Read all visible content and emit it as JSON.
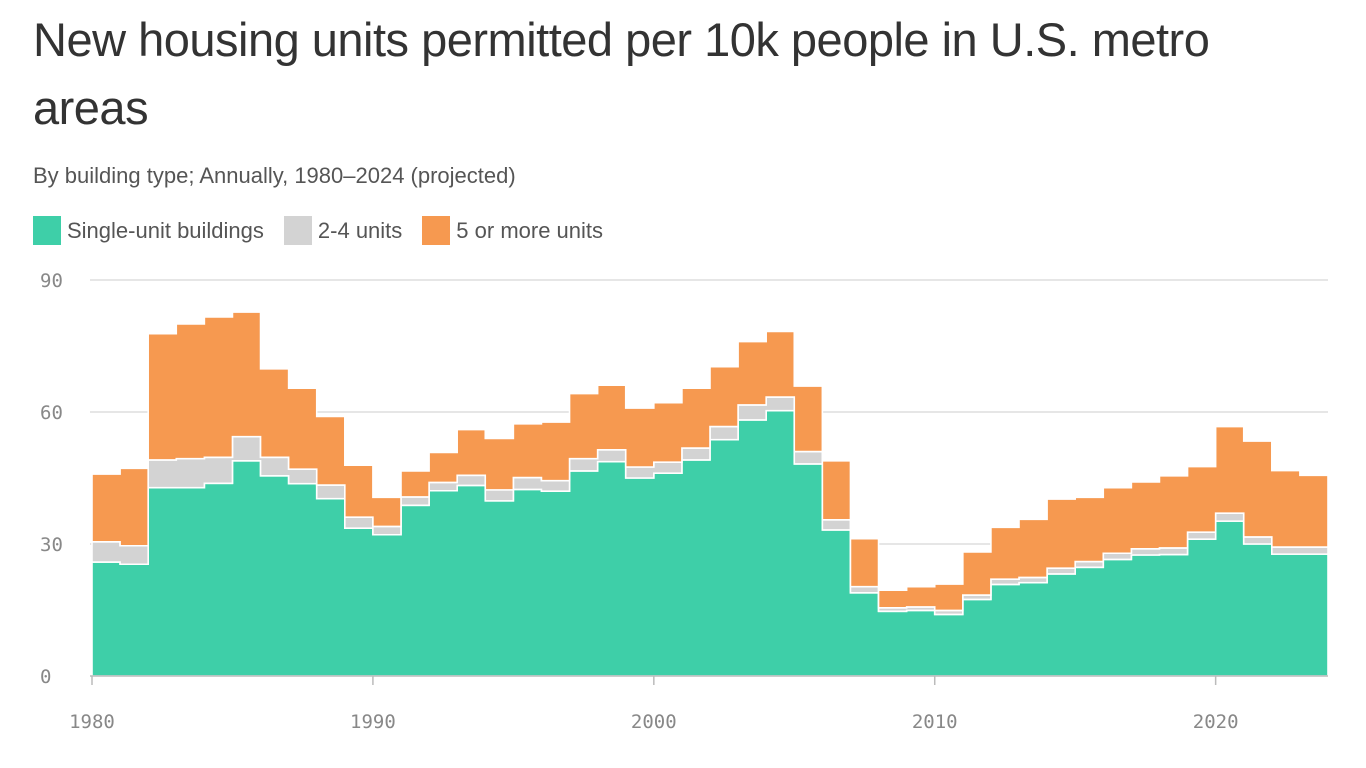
{
  "title": "New housing units permitted per 10k people in U.S. metro areas",
  "subtitle": "By building type; Annually, 1980–2024 (projected)",
  "legend": [
    {
      "label": "Single-unit buildings",
      "color": "#3ecfa8"
    },
    {
      "label": "2-4 units",
      "color": "#d3d3d3"
    },
    {
      "label": "5 or more units",
      "color": "#f69950"
    }
  ],
  "chart_data": {
    "type": "area",
    "stacked": true,
    "step": true,
    "x": [
      1980,
      1981,
      1982,
      1983,
      1984,
      1985,
      1986,
      1987,
      1988,
      1989,
      1990,
      1991,
      1992,
      1993,
      1994,
      1995,
      1996,
      1997,
      1998,
      1999,
      2000,
      2001,
      2002,
      2003,
      2004,
      2005,
      2006,
      2007,
      2008,
      2009,
      2010,
      2011,
      2012,
      2013,
      2014,
      2015,
      2016,
      2017,
      2018,
      2019,
      2020,
      2021,
      2022,
      2023
    ],
    "series": [
      {
        "name": "Single-unit buildings",
        "color": "#3ecfa8",
        "values": [
          25.9,
          25.4,
          42.8,
          42.8,
          43.8,
          48.9,
          45.5,
          43.7,
          40.3,
          33.6,
          32.1,
          38.8,
          42.1,
          43.3,
          39.8,
          42.4,
          42.0,
          46.6,
          48.7,
          45.0,
          46.1,
          49.1,
          53.7,
          58.2,
          60.3,
          48.2,
          33.2,
          18.9,
          14.7,
          14.9,
          14.0,
          17.4,
          20.8,
          21.2,
          23.2,
          24.7,
          26.5,
          27.5,
          27.6,
          31.1,
          35.2,
          30.0,
          27.7,
          27.7
        ]
      },
      {
        "name": "2-4 units",
        "color": "#d3d3d3",
        "values": [
          4.6,
          4.2,
          6.3,
          6.6,
          5.9,
          5.5,
          4.2,
          3.3,
          3.1,
          2.5,
          1.9,
          1.9,
          1.9,
          2.3,
          2.5,
          2.7,
          2.4,
          2.8,
          2.7,
          2.5,
          2.5,
          2.7,
          3.0,
          3.4,
          3.1,
          2.8,
          2.3,
          1.4,
          0.8,
          0.8,
          0.9,
          1.0,
          1.2,
          1.2,
          1.3,
          1.3,
          1.4,
          1.4,
          1.5,
          1.6,
          1.8,
          1.6,
          1.6,
          1.6
        ]
      },
      {
        "name": "5 or more units",
        "color": "#f69950",
        "values": [
          15.4,
          17.6,
          28.7,
          30.6,
          31.9,
          28.3,
          20.1,
          18.4,
          15.6,
          11.8,
          6.6,
          5.9,
          6.8,
          10.4,
          11.7,
          12.2,
          13.3,
          14.8,
          14.7,
          13.4,
          13.5,
          13.6,
          13.6,
          14.4,
          14.9,
          14.9,
          13.4,
          10.9,
          4.0,
          4.6,
          6.0,
          9.8,
          11.8,
          13.2,
          15.7,
          14.6,
          14.9,
          15.2,
          16.4,
          14.9,
          19.7,
          21.8,
          17.4,
          16.3
        ]
      }
    ],
    "ylim": [
      0,
      90
    ],
    "yticks": [
      0,
      30,
      60,
      90
    ],
    "xlim": [
      1980,
      2024
    ],
    "xticks": [
      1980,
      1990,
      2000,
      2010,
      2020
    ],
    "grid": "horizontal",
    "legend_position": "top-left"
  }
}
